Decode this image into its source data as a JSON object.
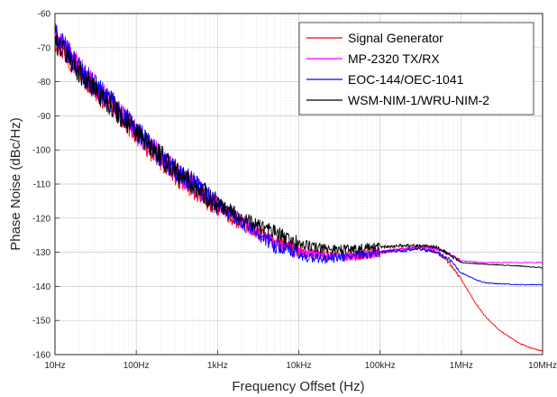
{
  "chart_data": {
    "type": "line",
    "xlabel": "Frequency Offset (Hz)",
    "ylabel": "Phase Noise (dBc/Hz)",
    "x_scale": "log",
    "xlim": [
      10,
      10000000
    ],
    "ylim": [
      -160,
      -60
    ],
    "x_ticks": [
      {
        "value": 10,
        "label": "10Hz"
      },
      {
        "value": 100,
        "label": "100Hz"
      },
      {
        "value": 1000,
        "label": "1kHz"
      },
      {
        "value": 10000,
        "label": "10kHz"
      },
      {
        "value": 100000,
        "label": "100kHz"
      },
      {
        "value": 1000000,
        "label": "1MHz"
      },
      {
        "value": 10000000,
        "label": "10MHz"
      }
    ],
    "y_ticks": [
      -60,
      -70,
      -80,
      -90,
      -100,
      -110,
      -120,
      -130,
      -140,
      -150,
      -160
    ],
    "grid": true,
    "minor_grid": true,
    "legend_position": "top-right",
    "series": [
      {
        "name": "Signal Generator",
        "color": "#ff0000",
        "points": [
          [
            10,
            -68
          ],
          [
            15,
            -73
          ],
          [
            20,
            -77
          ],
          [
            30,
            -82
          ],
          [
            50,
            -87
          ],
          [
            70,
            -91
          ],
          [
            100,
            -95
          ],
          [
            150,
            -100
          ],
          [
            200,
            -103
          ],
          [
            300,
            -107
          ],
          [
            500,
            -111
          ],
          [
            700,
            -114
          ],
          [
            1000,
            -117
          ],
          [
            1500,
            -120
          ],
          [
            2000,
            -122
          ],
          [
            3000,
            -124
          ],
          [
            5000,
            -127
          ],
          [
            7000,
            -128
          ],
          [
            10000,
            -130
          ],
          [
            20000,
            -131
          ],
          [
            50000,
            -131
          ],
          [
            100000,
            -130
          ],
          [
            200000,
            -129
          ],
          [
            300000,
            -128.5
          ],
          [
            500000,
            -130
          ],
          [
            700000,
            -133
          ],
          [
            1000000,
            -138
          ],
          [
            1500000,
            -145
          ],
          [
            2000000,
            -149
          ],
          [
            3000000,
            -153
          ],
          [
            5000000,
            -156.5
          ],
          [
            7000000,
            -158
          ],
          [
            10000000,
            -159
          ]
        ]
      },
      {
        "name": "MP-2320 TX/RX",
        "color": "#ff00ff",
        "points": [
          [
            10,
            -66
          ],
          [
            15,
            -72
          ],
          [
            20,
            -76
          ],
          [
            30,
            -81
          ],
          [
            50,
            -86
          ],
          [
            70,
            -90
          ],
          [
            100,
            -94
          ],
          [
            150,
            -99
          ],
          [
            200,
            -102
          ],
          [
            300,
            -106
          ],
          [
            500,
            -110
          ],
          [
            700,
            -113
          ],
          [
            1000,
            -116
          ],
          [
            1500,
            -119
          ],
          [
            2000,
            -121
          ],
          [
            3000,
            -124
          ],
          [
            5000,
            -127
          ],
          [
            7000,
            -128
          ],
          [
            10000,
            -129.5
          ],
          [
            20000,
            -131
          ],
          [
            50000,
            -131
          ],
          [
            100000,
            -130
          ],
          [
            200000,
            -129
          ],
          [
            300000,
            -128.5
          ],
          [
            500000,
            -129
          ],
          [
            700000,
            -130.5
          ],
          [
            1000000,
            -132.5
          ],
          [
            2000000,
            -133
          ],
          [
            5000000,
            -133
          ],
          [
            10000000,
            -133
          ]
        ]
      },
      {
        "name": "EOC-144/OEC-1041",
        "color": "#0000ff",
        "points": [
          [
            10,
            -66
          ],
          [
            15,
            -72
          ],
          [
            20,
            -76
          ],
          [
            30,
            -81
          ],
          [
            50,
            -86
          ],
          [
            70,
            -90
          ],
          [
            100,
            -94
          ],
          [
            150,
            -99
          ],
          [
            200,
            -102
          ],
          [
            300,
            -106
          ],
          [
            500,
            -110
          ],
          [
            700,
            -113
          ],
          [
            1000,
            -116
          ],
          [
            1500,
            -119
          ],
          [
            2000,
            -121
          ],
          [
            3000,
            -124
          ],
          [
            5000,
            -128
          ],
          [
            7000,
            -129
          ],
          [
            10000,
            -131
          ],
          [
            20000,
            -132
          ],
          [
            50000,
            -131
          ],
          [
            100000,
            -130
          ],
          [
            200000,
            -129.5
          ],
          [
            300000,
            -129
          ],
          [
            500000,
            -130
          ],
          [
            700000,
            -132
          ],
          [
            1000000,
            -136
          ],
          [
            1500000,
            -138
          ],
          [
            2000000,
            -139
          ],
          [
            5000000,
            -139.5
          ],
          [
            10000000,
            -139.5
          ]
        ]
      },
      {
        "name": "WSM-NIM-1/WRU-NIM-2",
        "color": "#000000",
        "points": [
          [
            10,
            -68
          ],
          [
            15,
            -73
          ],
          [
            20,
            -77
          ],
          [
            30,
            -82
          ],
          [
            50,
            -87
          ],
          [
            70,
            -91
          ],
          [
            100,
            -95
          ],
          [
            150,
            -99
          ],
          [
            200,
            -102
          ],
          [
            300,
            -106
          ],
          [
            500,
            -110
          ],
          [
            700,
            -113
          ],
          [
            1000,
            -116
          ],
          [
            1500,
            -118
          ],
          [
            2000,
            -120
          ],
          [
            3000,
            -122
          ],
          [
            5000,
            -124
          ],
          [
            7000,
            -126
          ],
          [
            10000,
            -127.5
          ],
          [
            20000,
            -129
          ],
          [
            50000,
            -129
          ],
          [
            100000,
            -128.5
          ],
          [
            200000,
            -128
          ],
          [
            300000,
            -128
          ],
          [
            500000,
            -128.5
          ],
          [
            700000,
            -130.5
          ],
          [
            1000000,
            -133
          ],
          [
            2000000,
            -133.5
          ],
          [
            5000000,
            -134
          ],
          [
            10000000,
            -134.5
          ]
        ]
      }
    ]
  }
}
